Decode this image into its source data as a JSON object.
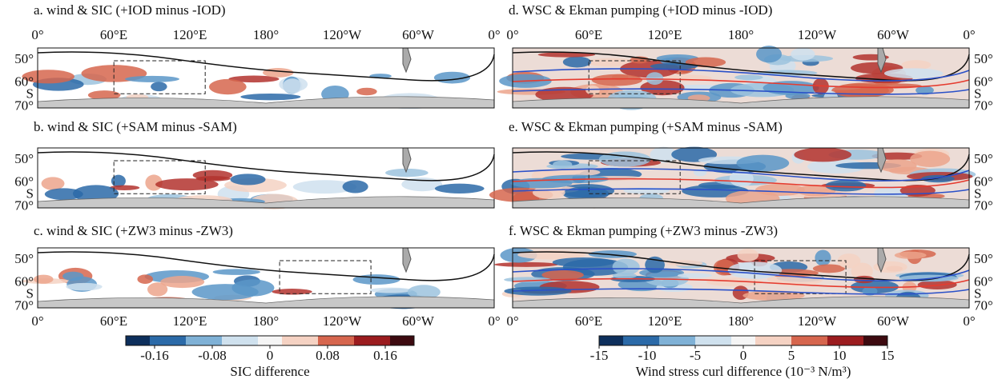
{
  "panels": [
    {
      "title": "a. wind & SIC (+IOD minus -IOD)"
    },
    {
      "title": "b. wind & SIC (+SAM minus -SAM)"
    },
    {
      "title": "c. wind & SIC (+ZW3 minus -ZW3)"
    },
    {
      "title": "d. WSC & Ekman pumping (+IOD minus -IOD)"
    },
    {
      "title": "e. WSC & Ekman pumping (+SAM minus -SAM)"
    },
    {
      "title": "f. WSC & Ekman pumping (+ZW3 minus -ZW3)"
    }
  ],
  "lon_labels": [
    "0°",
    "60°E",
    "120°E",
    "180°",
    "120°W",
    "60°W",
    "0°"
  ],
  "lat_labels": [
    "50°",
    "60°",
    "S",
    "70°"
  ],
  "colorbars": [
    {
      "label": "SIC difference",
      "lim": [
        -0.2,
        0.2
      ],
      "ticks": [
        -0.16,
        -0.08,
        0,
        0.08,
        0.16
      ]
    },
    {
      "label": "Wind stress curl difference (10⁻³ N/m³)",
      "lim": [
        -15,
        15
      ],
      "ticks": [
        -15,
        -10,
        -5,
        0,
        5,
        10,
        15
      ]
    }
  ]
}
